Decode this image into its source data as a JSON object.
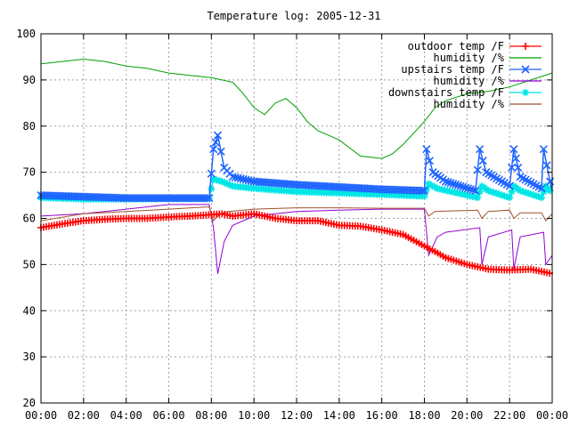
{
  "chart_data": {
    "type": "line",
    "title": "Temperature log: 2005-12-31",
    "xlabel": "",
    "ylabel": "",
    "xlim": [
      "00:00",
      "24:00"
    ],
    "ylim": [
      20,
      100
    ],
    "grid": true,
    "legend_position": "top-right",
    "x_ticks": [
      "00:00",
      "02:00",
      "04:00",
      "06:00",
      "08:00",
      "10:00",
      "12:00",
      "14:00",
      "16:00",
      "18:00",
      "20:00",
      "22:00",
      "00:00"
    ],
    "y_ticks": [
      "20",
      "30",
      "40",
      "50",
      "60",
      "70",
      "80",
      "90",
      "100"
    ],
    "series": [
      {
        "name": "outdoor temp /F",
        "color": "#ff0000",
        "marker": "plus",
        "x": [
          0,
          1,
          2,
          3,
          4,
          5,
          6,
          7,
          8,
          8.5,
          9,
          10,
          11,
          12,
          13,
          14,
          15,
          16,
          17,
          18,
          18.5,
          19,
          20,
          21,
          22,
          23,
          24
        ],
        "y": [
          58,
          58.8,
          59.5,
          59.8,
          60,
          60,
          60.3,
          60.5,
          60.8,
          61,
          60.5,
          61,
          60,
          59.5,
          59.5,
          58.5,
          58.3,
          57.5,
          56.5,
          54,
          52.8,
          51.5,
          50,
          49,
          48.8,
          49,
          48
        ]
      },
      {
        "name": "humidity /%",
        "color": "#00a000",
        "marker": "none",
        "x": [
          0,
          1,
          2,
          3,
          4,
          5,
          6,
          7,
          8,
          9,
          9.5,
          10,
          10.5,
          11,
          11.5,
          12,
          12.5,
          13,
          13.5,
          14,
          15,
          16,
          16.5,
          17,
          18,
          18.5,
          19,
          20,
          21,
          22,
          23,
          24
        ],
        "y": [
          93.5,
          94,
          94.5,
          94,
          93,
          92.5,
          91.5,
          91,
          90.5,
          89.5,
          87,
          84,
          82.5,
          85,
          86,
          84,
          81,
          79,
          78,
          77,
          73.5,
          73,
          74,
          76,
          81,
          84,
          85.5,
          87,
          87.5,
          88.5,
          90,
          91.5
        ]
      },
      {
        "name": "upstairs temp /F",
        "color": "#1e64ff",
        "marker": "cross",
        "x": [
          0,
          2,
          4,
          6,
          7.9,
          8.1,
          8.3,
          8.6,
          9,
          10,
          12,
          14,
          16,
          18,
          18.1,
          18.4,
          19,
          20.4,
          20.6,
          20.9,
          22,
          22.2,
          22.5,
          23.5,
          23.6,
          23.9,
          24
        ],
        "y": [
          65,
          64.7,
          64.4,
          64.4,
          64.4,
          75,
          78,
          71,
          69,
          68,
          67.3,
          66.8,
          66.3,
          66,
          75,
          70,
          68,
          66,
          75,
          70,
          67,
          75,
          69,
          66.5,
          75,
          68,
          66
        ]
      },
      {
        "name": "humidity /%",
        "color": "#9400d3",
        "marker": "none",
        "x": [
          0,
          2,
          4,
          6,
          7.9,
          8.1,
          8.3,
          8.6,
          9,
          10,
          12,
          14,
          16,
          18,
          18.2,
          18.6,
          19,
          20.6,
          20.7,
          21,
          22.1,
          22.2,
          22.5,
          23.6,
          23.7,
          24
        ],
        "y": [
          60.5,
          61,
          62,
          63,
          63,
          58,
          48,
          55,
          58.5,
          60.5,
          61.5,
          61.8,
          62,
          62,
          52,
          56,
          57,
          58,
          50,
          56,
          57.5,
          49,
          56,
          57,
          50,
          52
        ]
      },
      {
        "name": "downstairs temp /F",
        "color": "#00e6e6",
        "marker": "star",
        "x": [
          0,
          2,
          4,
          6,
          7.9,
          8.1,
          8.5,
          9,
          10,
          12,
          14,
          16,
          18,
          18.2,
          18.6,
          20.5,
          20.7,
          21,
          22,
          22.2,
          22.5,
          23.5,
          23.7,
          24
        ],
        "y": [
          64.5,
          64.2,
          64.2,
          64.3,
          64.3,
          68.5,
          68,
          67,
          66.5,
          65.8,
          65.5,
          65.2,
          64.8,
          67.5,
          66.5,
          64.5,
          67,
          66,
          64.5,
          67,
          66,
          64.5,
          67,
          65.5
        ]
      },
      {
        "name": "humidity /%",
        "color": "#a0522d",
        "marker": "none",
        "x": [
          0,
          2,
          4,
          6,
          7.9,
          8.1,
          8.4,
          8.8,
          10,
          12,
          14,
          16,
          18,
          18.2,
          18.5,
          20.5,
          20.7,
          21,
          22,
          22.2,
          22.5,
          23.5,
          23.7,
          24
        ],
        "y": [
          59.5,
          61,
          61.5,
          62,
          62.5,
          59.5,
          61,
          61.5,
          62,
          62.3,
          62.3,
          62.2,
          62.2,
          60.5,
          61.5,
          61.8,
          60,
          61.5,
          61.8,
          60,
          61.2,
          61.2,
          59.5,
          61
        ]
      }
    ]
  }
}
